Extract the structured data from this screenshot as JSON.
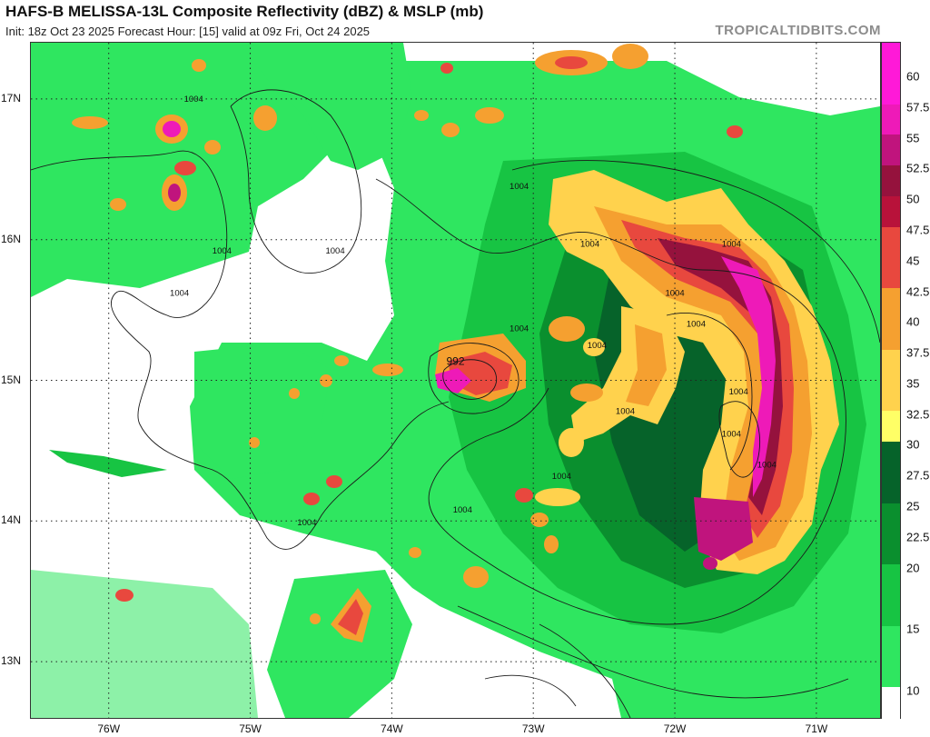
{
  "title": "HAFS-B MELISSA-13L Composite Reflectivity (dBZ) & MSLP (mb)",
  "subtitle": "Init: 18z Oct 23 2025   Forecast Hour: [15]   valid at 09z Fri, Oct 24 2025",
  "brand": "TROPICALTIDBITS.COM",
  "map": {
    "lon_range": [
      -76.55,
      -70.55
    ],
    "lat_range": [
      12.6,
      17.4
    ],
    "lat_labels": [
      {
        "value": 17,
        "text": "17N"
      },
      {
        "value": 16,
        "text": "16N"
      },
      {
        "value": 15,
        "text": "15N"
      },
      {
        "value": 14,
        "text": "14N"
      },
      {
        "value": 13,
        "text": "13N"
      }
    ],
    "lon_labels": [
      {
        "value": -76,
        "text": "76W"
      },
      {
        "value": -75,
        "text": "75W"
      },
      {
        "value": -74,
        "text": "74W"
      },
      {
        "value": -73,
        "text": "73W"
      },
      {
        "value": -72,
        "text": "72W"
      },
      {
        "value": -71,
        "text": "71W"
      }
    ],
    "isobar_labels": [
      {
        "text": "1004",
        "lon": -75.4,
        "lat": 16.98
      },
      {
        "text": "1004",
        "lon": -73.1,
        "lat": 16.36
      },
      {
        "text": "1004",
        "lon": -75.2,
        "lat": 15.9
      },
      {
        "text": "1004",
        "lon": -74.4,
        "lat": 15.9
      },
      {
        "text": "1004",
        "lon": -75.5,
        "lat": 15.6
      },
      {
        "text": "1004",
        "lon": -72.6,
        "lat": 15.95
      },
      {
        "text": "1004",
        "lon": -72.0,
        "lat": 15.6
      },
      {
        "text": "1004",
        "lon": -71.6,
        "lat": 15.95
      },
      {
        "text": "1004",
        "lon": -71.85,
        "lat": 15.38
      },
      {
        "text": "1004",
        "lon": -73.1,
        "lat": 15.35
      },
      {
        "text": "1004",
        "lon": -72.55,
        "lat": 15.23
      },
      {
        "text": "992",
        "lon": -73.55,
        "lat": 15.11
      },
      {
        "text": "1004",
        "lon": -72.35,
        "lat": 14.76
      },
      {
        "text": "1004",
        "lon": -71.55,
        "lat": 14.9
      },
      {
        "text": "1004",
        "lon": -71.6,
        "lat": 14.6
      },
      {
        "text": "1004",
        "lon": -71.35,
        "lat": 14.38
      },
      {
        "text": "1004",
        "lon": -72.8,
        "lat": 14.3
      },
      {
        "text": "1004",
        "lon": -73.5,
        "lat": 14.06
      },
      {
        "text": "1004",
        "lon": -74.6,
        "lat": 13.97
      }
    ]
  },
  "colorbar": {
    "ticks": [
      {
        "value": 60,
        "text": "60"
      },
      {
        "value": 57.5,
        "text": "57.5"
      },
      {
        "value": 55,
        "text": "55"
      },
      {
        "value": 52.5,
        "text": "52.5"
      },
      {
        "value": 50,
        "text": "50"
      },
      {
        "value": 47.5,
        "text": "47.5"
      },
      {
        "value": 45,
        "text": "45"
      },
      {
        "value": 42.5,
        "text": "42.5"
      },
      {
        "value": 40,
        "text": "40"
      },
      {
        "value": 37.5,
        "text": "37.5"
      },
      {
        "value": 35,
        "text": "35"
      },
      {
        "value": 32.5,
        "text": "32.5"
      },
      {
        "value": 30,
        "text": "30"
      },
      {
        "value": 27.5,
        "text": "27.5"
      },
      {
        "value": 25,
        "text": "25"
      },
      {
        "value": 22.5,
        "text": "22.5"
      },
      {
        "value": 20,
        "text": "20"
      },
      {
        "value": 15,
        "text": "15"
      },
      {
        "value": 10,
        "text": "10"
      }
    ],
    "colors": {
      "green_light": "#2fe660",
      "green_mid": "#17c443",
      "green_dark": "#0a8f2e",
      "green_deep": "#06632a",
      "yellow": "#ffff66",
      "orange_light": "#ffd24d",
      "orange": "#f5a030",
      "red": "#e8483e",
      "crimson": "#b8123a",
      "maroon": "#95123d",
      "magenta_dark": "#c0147d",
      "magenta": "#ee1ab8",
      "pink": "#ff19d8"
    }
  }
}
